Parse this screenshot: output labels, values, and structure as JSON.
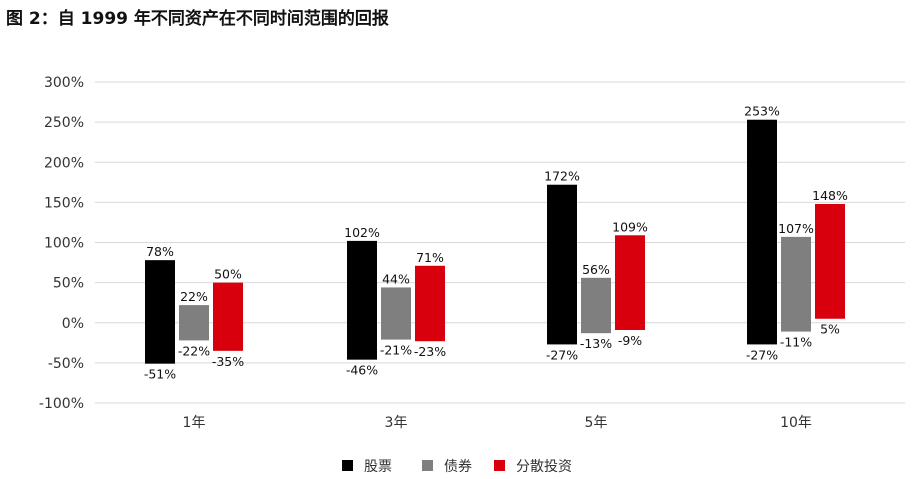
{
  "title": "图 2：自 1999 年不同资产在不同时间范围的回报",
  "chart_data": {
    "type": "bar",
    "subtype": "floating-range",
    "title": "图 2：自 1999 年不同资产在不同时间范围的回报",
    "categories": [
      "1年",
      "3年",
      "5年",
      "10年"
    ],
    "series": [
      {
        "name": "股票",
        "color": "#000000",
        "high": [
          78,
          102,
          172,
          253
        ],
        "low": [
          -51,
          -46,
          -27,
          -27
        ],
        "high_labels": [
          "78%",
          "102%",
          "172%",
          "253%"
        ],
        "low_labels": [
          "-51%",
          "-46%",
          "-27%",
          "-27%"
        ]
      },
      {
        "name": "债券",
        "color": "#7f7f7f",
        "high": [
          22,
          44,
          56,
          107
        ],
        "low": [
          -22,
          -21,
          -13,
          -11
        ],
        "high_labels": [
          "22%",
          "44%",
          "56%",
          "107%"
        ],
        "low_labels": [
          "-22%",
          "-21%",
          "-13%",
          "-11%"
        ]
      },
      {
        "name": "分散投资",
        "color": "#d9000d",
        "high": [
          50,
          71,
          109,
          148
        ],
        "low": [
          -35,
          -23,
          -9,
          5
        ],
        "high_labels": [
          "50%",
          "71%",
          "109%",
          "148%"
        ],
        "low_labels": [
          "-35%",
          "-23%",
          "-9%",
          "5%"
        ]
      }
    ],
    "ylim": [
      -100,
      300
    ],
    "yticks": [
      300,
      250,
      200,
      150,
      100,
      50,
      0,
      -50,
      -100
    ],
    "ytick_labels": [
      "300%",
      "250%",
      "200%",
      "150%",
      "100%",
      "50%",
      "0%",
      "-50%",
      "-100%"
    ],
    "grid": true,
    "legend_position": "bottom-center"
  }
}
